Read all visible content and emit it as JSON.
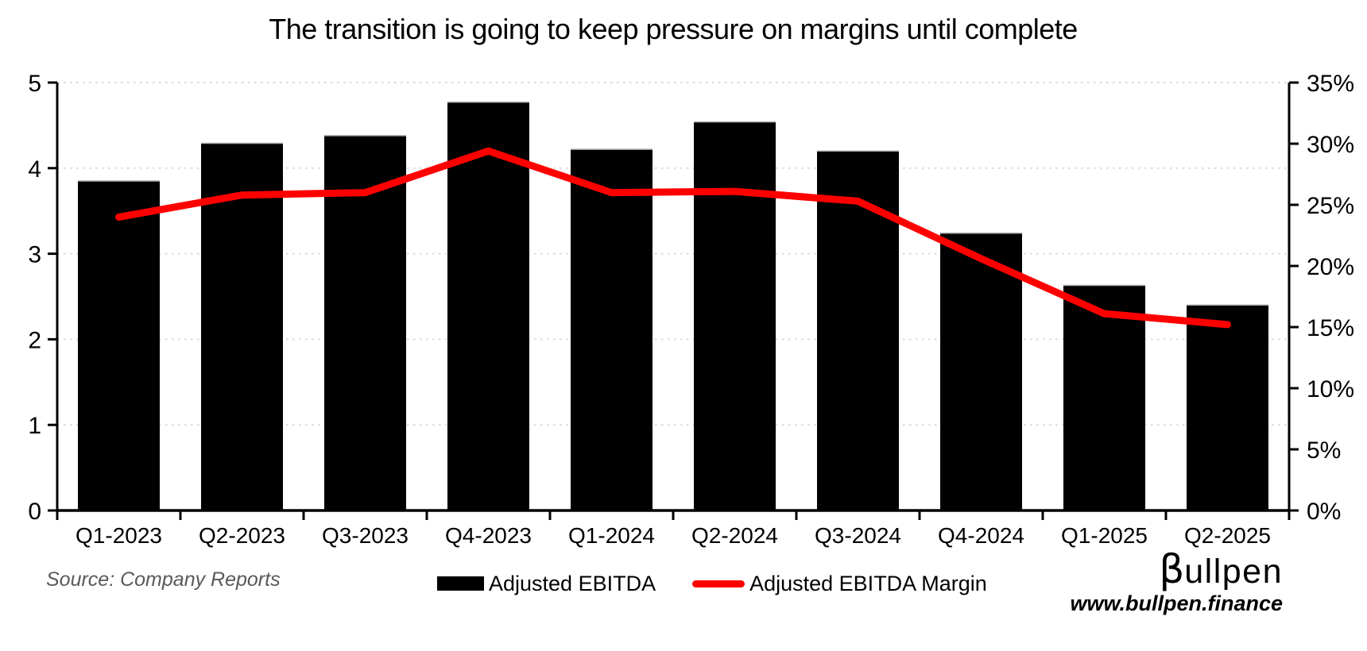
{
  "page": {
    "background": "#FFFFFF"
  },
  "chart_data": {
    "type": "bar",
    "title": "The transition is going to keep pressure on margins until complete",
    "categories": [
      "Q1-2023",
      "Q2-2023",
      "Q3-2023",
      "Q4-2023",
      "Q1-2024",
      "Q2-2024",
      "Q3-2024",
      "Q4-2024",
      "Q1-2025",
      "Q2-2025"
    ],
    "series": [
      {
        "name": "Adjusted EBITDA",
        "type": "bar",
        "axis": "left",
        "color": "#000000",
        "values": [
          3.85,
          4.29,
          4.38,
          4.77,
          4.22,
          4.54,
          4.2,
          3.24,
          2.63,
          2.4
        ]
      },
      {
        "name": "Adjusted EBITDA Margin",
        "type": "line",
        "axis": "right",
        "color": "#FF0000",
        "values": [
          24.0,
          25.8,
          26.0,
          29.4,
          26.0,
          26.1,
          25.3,
          20.6,
          16.1,
          15.2
        ]
      }
    ],
    "left_axis": {
      "min": 0,
      "max": 5,
      "step": 1,
      "tick_labels": [
        "0",
        "1",
        "2",
        "3",
        "4",
        "5"
      ]
    },
    "right_axis": {
      "min": 0,
      "max": 35,
      "step": 5,
      "tick_labels": [
        "0%",
        "5%",
        "10%",
        "15%",
        "20%",
        "25%",
        "30%",
        "35%"
      ]
    },
    "grid": {
      "horizontal": "dotted",
      "color": "#D9D9D9"
    },
    "legend_position": "bottom"
  },
  "legend": {
    "items": [
      {
        "label": "Adjusted EBITDA",
        "swatch": "black-bar-swatch",
        "color": "#000000"
      },
      {
        "label": "Adjusted EBITDA Margin",
        "swatch": "red-line-swatch",
        "color": "#FF0000"
      }
    ]
  },
  "source_note": "Source: Company Reports",
  "branding": {
    "logo_beta": "β",
    "logo_rest": "ullpen",
    "website": "www.bullpen.finance"
  }
}
